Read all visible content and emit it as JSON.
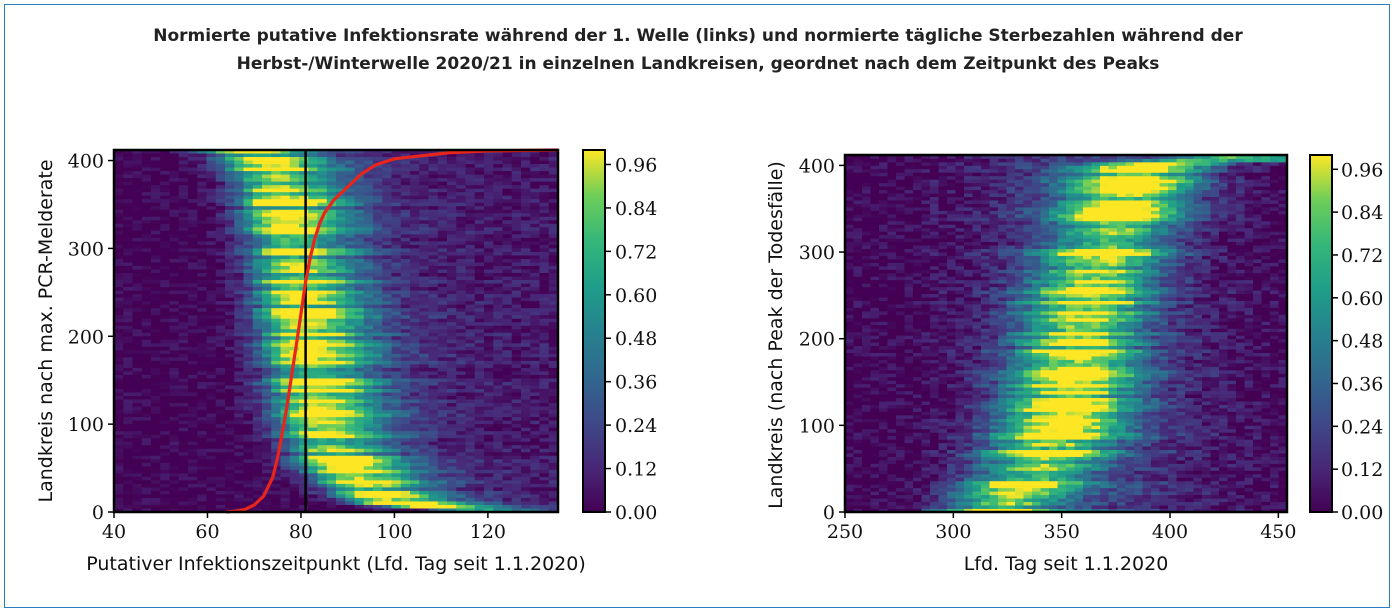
{
  "title_line1": "Normierte putative Infektionsrate während der 1. Welle (links) und normierte tägliche Sterbezahlen während der",
  "title_line2": "Herbst-/Winterwelle 2020/21 in einzelnen Landkreisen, geordnet nach dem Zeitpunkt des Peaks",
  "colors": {
    "frame": "#2a7bc0",
    "peak_curve": "#e8251c",
    "vertical_line": "#000000"
  },
  "chart_data": [
    {
      "type": "heatmap",
      "xlabel": "Putativer Infektionszeitpunkt (Lfd. Tag seit 1.1.2020)",
      "ylabel": "Landkreis nach max. PCR-Melderate",
      "xlim": [
        40,
        135
      ],
      "ylim": [
        0,
        412
      ],
      "xticks": [
        "40",
        "60",
        "80",
        "100",
        "120"
      ],
      "yticks": [
        "0",
        "100",
        "200",
        "300",
        "400"
      ],
      "colorbar": {
        "range": [
          0,
          1
        ],
        "ticks": [
          "0.00",
          "0.12",
          "0.24",
          "0.36",
          "0.48",
          "0.60",
          "0.72",
          "0.84",
          "0.96"
        ],
        "colormap": "viridis"
      },
      "vertical_line_x": 81,
      "peak_curve": {
        "x": [
          64,
          66,
          68,
          70,
          72,
          74,
          75,
          76,
          77,
          78,
          79,
          80,
          81,
          82,
          83,
          84,
          85,
          87,
          89,
          91,
          93,
          96,
          100,
          105,
          112,
          120,
          135
        ],
        "y": [
          0,
          1,
          3,
          8,
          18,
          40,
          62,
          90,
          120,
          155,
          190,
          225,
          262,
          290,
          312,
          328,
          340,
          355,
          365,
          375,
          385,
          395,
          402,
          405,
          409,
          411,
          412
        ]
      }
    },
    {
      "type": "heatmap",
      "xlabel": "Lfd. Tag seit 1.1.2020",
      "ylabel": "Landkreis (nach Peak der Todesfälle)",
      "xlim": [
        250,
        454
      ],
      "ylim": [
        0,
        412
      ],
      "xticks": [
        "250",
        "300",
        "350",
        "400",
        "450"
      ],
      "yticks": [
        "0",
        "100",
        "200",
        "300",
        "400"
      ],
      "colorbar": {
        "range": [
          0,
          1
        ],
        "ticks": [
          "0.00",
          "0.12",
          "0.24",
          "0.36",
          "0.48",
          "0.60",
          "0.72",
          "0.84",
          "0.96"
        ],
        "colormap": "viridis"
      },
      "peak_center": {
        "y": [
          0,
          50,
          100,
          150,
          200,
          250,
          300,
          350,
          400,
          412
        ],
        "x": [
          320,
          338,
          350,
          355,
          358,
          362,
          370,
          378,
          388,
          440
        ]
      }
    }
  ]
}
